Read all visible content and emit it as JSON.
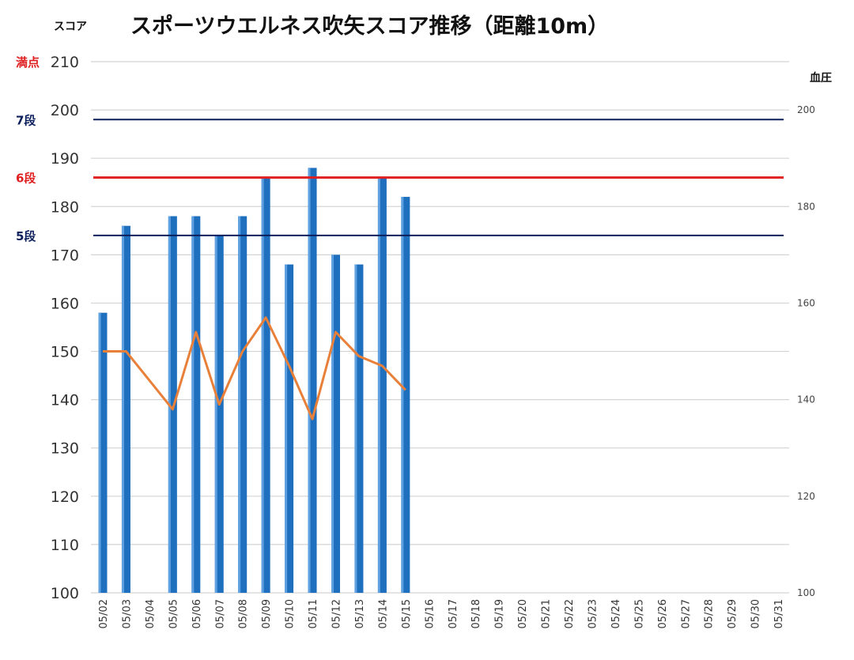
{
  "chart_data": {
    "type": "bar",
    "title": "スポーツウエルネス吹矢スコア推移（距離10m）",
    "ylabel": "スコア",
    "y2label": "血圧",
    "ylim": [
      100,
      210
    ],
    "y2lim": [
      100,
      210
    ],
    "yticks": [
      100,
      110,
      120,
      130,
      140,
      150,
      160,
      170,
      180,
      190,
      200,
      210
    ],
    "y2ticks": [
      100,
      120,
      140,
      160,
      180,
      200
    ],
    "grid": true,
    "categories": [
      "05/02",
      "05/03",
      "05/04",
      "05/05",
      "05/06",
      "05/07",
      "05/08",
      "05/09",
      "05/10",
      "05/11",
      "05/12",
      "05/13",
      "05/14",
      "05/15",
      "05/16",
      "05/17",
      "05/18",
      "05/19",
      "05/20",
      "05/21",
      "05/22",
      "05/23",
      "05/24",
      "05/25",
      "05/26",
      "05/27",
      "05/28",
      "05/29",
      "05/30",
      "05/31"
    ],
    "series": [
      {
        "kind": "bar",
        "axis": "left",
        "color": "#1f6fbf",
        "values": [
          158,
          176,
          null,
          178,
          178,
          174,
          178,
          186,
          168,
          188,
          170,
          168,
          186,
          182,
          null,
          null,
          null,
          null,
          null,
          null,
          null,
          null,
          null,
          null,
          null,
          null,
          null,
          null,
          null,
          null
        ]
      },
      {
        "kind": "line",
        "axis": "right",
        "color": "#e8803a",
        "values": [
          150,
          150,
          null,
          138,
          154,
          139,
          150,
          157,
          147,
          136,
          154,
          149,
          147,
          142,
          null,
          null,
          null,
          null,
          null,
          null,
          null,
          null,
          null,
          null,
          null,
          null,
          null,
          null,
          null,
          null
        ]
      }
    ],
    "reference_lines": [
      {
        "label": "満点",
        "value": 210,
        "color": "#e02020",
        "line": false
      },
      {
        "label": "7段",
        "value": 198,
        "color": "#0b1f5c",
        "line": true
      },
      {
        "label": "6段",
        "value": 186,
        "color": "#e02020",
        "line": true
      },
      {
        "label": "5段",
        "value": 174,
        "color": "#0b1f5c",
        "line": true
      }
    ]
  }
}
